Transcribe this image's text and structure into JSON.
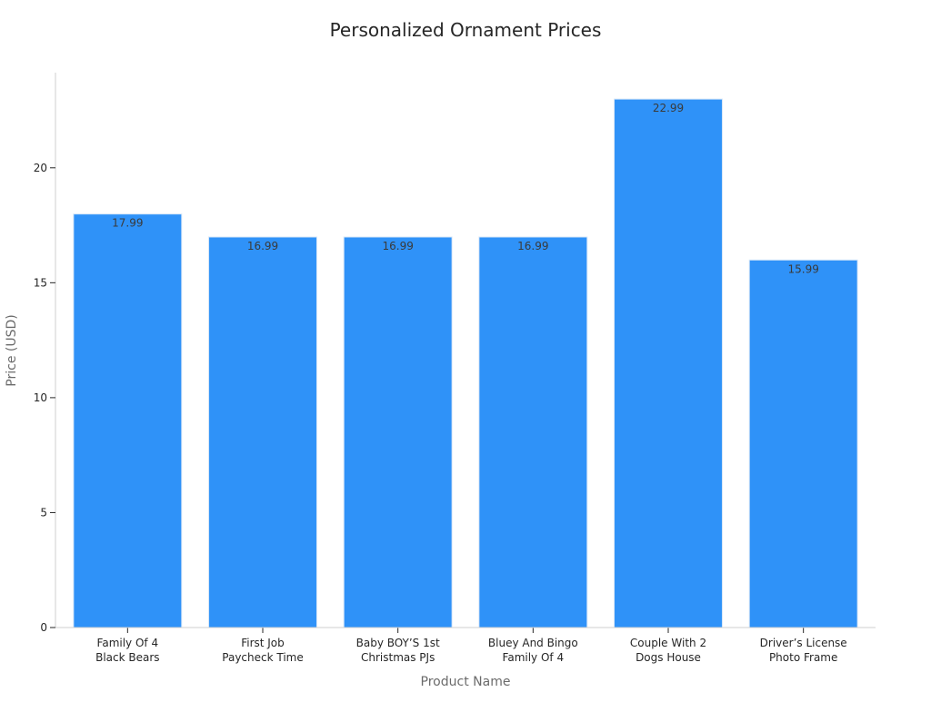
{
  "chart_data": {
    "type": "bar",
    "title": "Personalized Ornament Prices",
    "xlabel": "Product Name",
    "ylabel": "Price (USD)",
    "categories": [
      [
        "Family Of 4",
        "Black Bears"
      ],
      [
        "First Job",
        "Paycheck Time"
      ],
      [
        "Baby BOY’S 1st",
        "Christmas PJs"
      ],
      [
        "Bluey And Bingo",
        "Family Of 4"
      ],
      [
        "Couple With 2",
        "Dogs House"
      ],
      [
        "Driver’s License",
        "Photo Frame"
      ]
    ],
    "values": [
      17.99,
      16.99,
      16.99,
      16.99,
      22.99,
      15.99
    ],
    "data_labels": [
      "17.99",
      "16.99",
      "16.99",
      "16.99",
      "22.99",
      "15.99"
    ],
    "yticks": [
      0,
      5,
      10,
      15,
      20
    ],
    "ylim": [
      0,
      24.14
    ],
    "bar_color": "#2f92f8",
    "grid": false,
    "legend": "none"
  }
}
